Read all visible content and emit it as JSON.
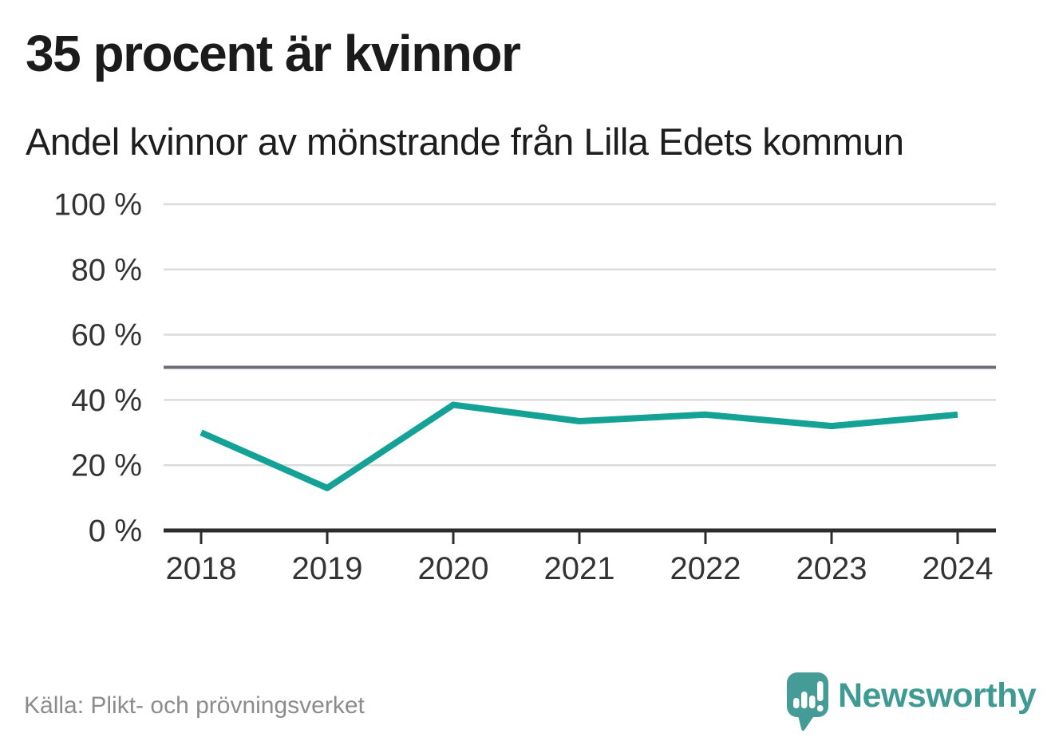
{
  "header": {
    "title": "35 procent är kvinnor",
    "subtitle": "Andel kvinnor av mönstrande från Lilla Edets kommun"
  },
  "chart_data": {
    "type": "line",
    "title": "35 procent är kvinnor",
    "subtitle": "Andel kvinnor av mönstrande från Lilla Edets kommun",
    "categories": [
      "2018",
      "2019",
      "2020",
      "2021",
      "2022",
      "2023",
      "2024"
    ],
    "series": [
      {
        "name": "Andel kvinnor av mönstrande",
        "values": [
          30,
          13,
          38.5,
          33.5,
          35.5,
          32,
          35.5
        ]
      }
    ],
    "unit": "%",
    "ylim": [
      0,
      100
    ],
    "yticks": [
      0,
      20,
      40,
      60,
      80,
      100
    ],
    "ytick_labels": [
      "0 %",
      "20 %",
      "40 %",
      "60 %",
      "80 %",
      "100 %"
    ],
    "reference_line": {
      "value": 50
    },
    "grid": "horizontal",
    "legend": "none",
    "colors": {
      "line": "#14a296",
      "reference_line": "#6e6e78",
      "axis": "#2d2d2d",
      "gridline": "#dcdcdc",
      "tick_label": "#333333"
    }
  },
  "footer": {
    "source": "Källa: Plikt- och prövningsverket",
    "brand": "Newsworthy",
    "brand_color": "#3f9a94",
    "logo_icon": "newsworthy-speech-bubble-bar-chart-icon"
  }
}
